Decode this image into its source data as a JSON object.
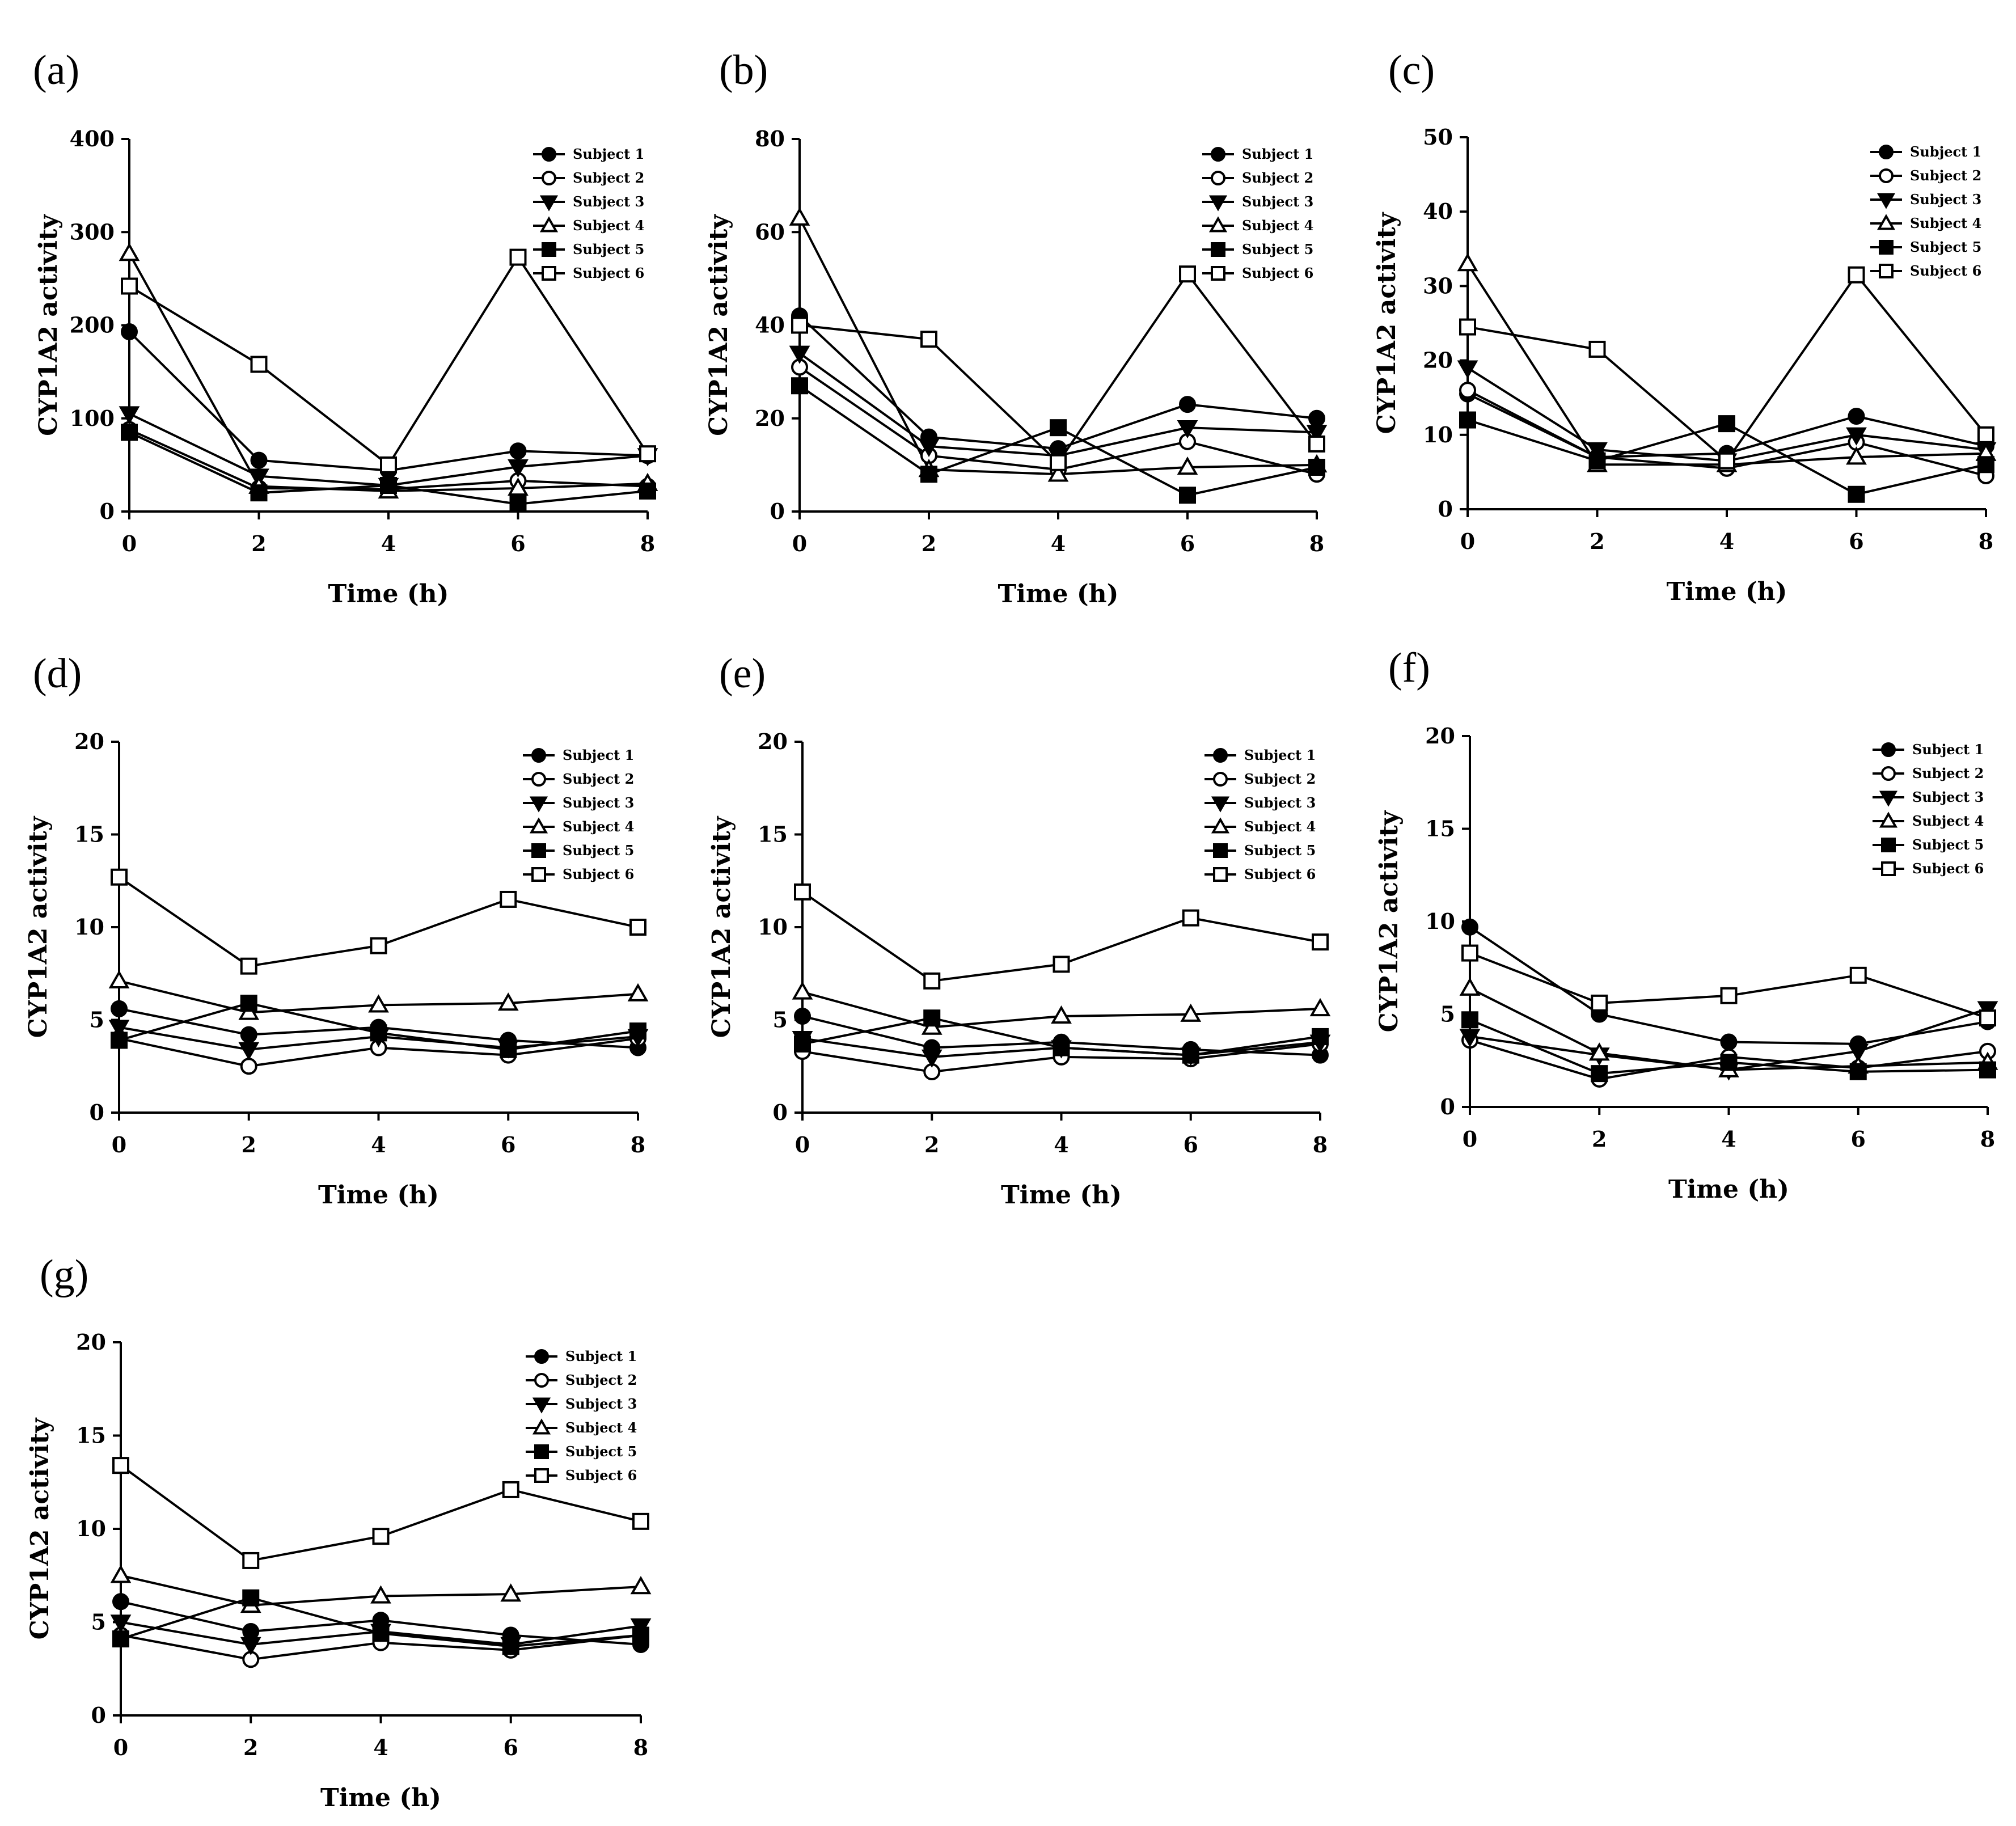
{
  "figure": {
    "ylabel": "CYP1A2 activity",
    "xlabel": "Time (h)"
  },
  "chart_data": [
    {
      "id": "a",
      "panel_label": "(a)",
      "type": "line",
      "x": [
        0,
        2,
        4,
        6,
        8
      ],
      "xticks": [
        "0",
        "2",
        "4",
        "6",
        "8"
      ],
      "xlim": [
        0,
        8
      ],
      "ylim": [
        0,
        400
      ],
      "yticks": [
        "0",
        "100",
        "200",
        "300",
        "400"
      ],
      "xlabel": "Time (h)",
      "ylabel": "CYP1A2 activity",
      "series": [
        {
          "name": "Subject 1",
          "marker": "circle-filled",
          "values": [
            193,
            55,
            44,
            65,
            60
          ]
        },
        {
          "name": "Subject 2",
          "marker": "circle-open",
          "values": [
            88,
            25,
            24,
            33,
            27
          ]
        },
        {
          "name": "Subject 3",
          "marker": "triangle-down-filled",
          "values": [
            105,
            38,
            28,
            48,
            60
          ]
        },
        {
          "name": "Subject 4",
          "marker": "triangle-up-open",
          "values": [
            277,
            27,
            22,
            25,
            30
          ]
        },
        {
          "name": "Subject 5",
          "marker": "square-filled",
          "values": [
            85,
            20,
            28,
            8,
            22
          ]
        },
        {
          "name": "Subject 6",
          "marker": "square-open",
          "values": [
            242,
            158,
            50,
            273,
            62
          ]
        }
      ]
    },
    {
      "id": "b",
      "panel_label": "(b)",
      "type": "line",
      "x": [
        0,
        2,
        4,
        6,
        8
      ],
      "xticks": [
        "0",
        "2",
        "4",
        "6",
        "8"
      ],
      "xlim": [
        0,
        8
      ],
      "ylim": [
        0,
        80
      ],
      "yticks": [
        "0",
        "20",
        "40",
        "60",
        "80"
      ],
      "xlabel": "Time (h)",
      "ylabel": "CYP1A2 activity",
      "series": [
        {
          "name": "Subject 1",
          "marker": "circle-filled",
          "values": [
            42,
            16,
            13.5,
            23,
            20
          ]
        },
        {
          "name": "Subject 2",
          "marker": "circle-open",
          "values": [
            31,
            12,
            9,
            15,
            8
          ]
        },
        {
          "name": "Subject 3",
          "marker": "triangle-down-filled",
          "values": [
            34,
            14,
            12,
            18,
            17
          ]
        },
        {
          "name": "Subject 4",
          "marker": "triangle-up-open",
          "values": [
            63,
            9,
            8,
            9.5,
            10
          ]
        },
        {
          "name": "Subject 5",
          "marker": "square-filled",
          "values": [
            27,
            8,
            18,
            3.5,
            9.5
          ]
        },
        {
          "name": "Subject 6",
          "marker": "square-open",
          "values": [
            40,
            37,
            10.5,
            51,
            14.5
          ]
        }
      ]
    },
    {
      "id": "c",
      "panel_label": "(c)",
      "type": "line",
      "x": [
        0,
        2,
        4,
        6,
        8
      ],
      "xticks": [
        "0",
        "2",
        "4",
        "6",
        "8"
      ],
      "xlim": [
        0,
        8
      ],
      "ylim": [
        0,
        50
      ],
      "yticks": [
        "0",
        "10",
        "20",
        "30",
        "40",
        "50"
      ],
      "xlabel": "Time (h)",
      "ylabel": "CYP1A2 activity",
      "series": [
        {
          "name": "Subject 1",
          "marker": "circle-filled",
          "values": [
            15.5,
            7,
            7.5,
            12.5,
            8.5
          ]
        },
        {
          "name": "Subject 2",
          "marker": "circle-open",
          "values": [
            16,
            7,
            5.5,
            9,
            4.5
          ]
        },
        {
          "name": "Subject 3",
          "marker": "triangle-down-filled",
          "values": [
            19,
            8,
            6.5,
            10,
            8
          ]
        },
        {
          "name": "Subject 4",
          "marker": "triangle-up-open",
          "values": [
            33,
            6,
            6,
            7,
            7.5
          ]
        },
        {
          "name": "Subject 5",
          "marker": "square-filled",
          "values": [
            12,
            6.5,
            11.5,
            2,
            6
          ]
        },
        {
          "name": "Subject 6",
          "marker": "square-open",
          "values": [
            24.5,
            21.5,
            6.5,
            31.5,
            10
          ]
        }
      ]
    },
    {
      "id": "d",
      "panel_label": "(d)",
      "type": "line",
      "x": [
        0,
        2,
        4,
        6,
        8
      ],
      "xticks": [
        "0",
        "2",
        "4",
        "6",
        "8"
      ],
      "xlim": [
        0,
        8
      ],
      "ylim": [
        0,
        20
      ],
      "yticks": [
        "0",
        "5",
        "10",
        "15",
        "20"
      ],
      "xlabel": "Time (h)",
      "ylabel": "CYP1A2 activity",
      "series": [
        {
          "name": "Subject 1",
          "marker": "circle-filled",
          "values": [
            5.6,
            4.2,
            4.6,
            3.9,
            3.5
          ]
        },
        {
          "name": "Subject 2",
          "marker": "circle-open",
          "values": [
            4.0,
            2.5,
            3.5,
            3.1,
            4.0
          ]
        },
        {
          "name": "Subject 3",
          "marker": "triangle-down-filled",
          "values": [
            4.6,
            3.4,
            4.1,
            3.5,
            4.1
          ]
        },
        {
          "name": "Subject 4",
          "marker": "triangle-up-open",
          "values": [
            7.1,
            5.4,
            5.8,
            5.9,
            6.4
          ]
        },
        {
          "name": "Subject 5",
          "marker": "square-filled",
          "values": [
            3.9,
            5.9,
            4.3,
            3.4,
            4.4
          ]
        },
        {
          "name": "Subject 6",
          "marker": "square-open",
          "values": [
            12.7,
            7.9,
            9.0,
            11.5,
            10.0
          ]
        }
      ]
    },
    {
      "id": "e",
      "panel_label": "(e)",
      "type": "line",
      "x": [
        0,
        2,
        4,
        6,
        8
      ],
      "xticks": [
        "0",
        "2",
        "4",
        "6",
        "8"
      ],
      "xlim": [
        0,
        8
      ],
      "ylim": [
        0,
        20
      ],
      "yticks": [
        "0",
        "5",
        "10",
        "15",
        "20"
      ],
      "xlabel": "Time (h)",
      "ylabel": "CYP1A2 activity",
      "series": [
        {
          "name": "Subject 1",
          "marker": "circle-filled",
          "values": [
            5.2,
            3.5,
            3.8,
            3.4,
            3.1
          ]
        },
        {
          "name": "Subject 2",
          "marker": "circle-open",
          "values": [
            3.3,
            2.2,
            3.0,
            2.9,
            3.7
          ]
        },
        {
          "name": "Subject 3",
          "marker": "triangle-down-filled",
          "values": [
            4.0,
            3.0,
            3.5,
            3.1,
            3.8
          ]
        },
        {
          "name": "Subject 4",
          "marker": "triangle-up-open",
          "values": [
            6.5,
            4.6,
            5.2,
            5.3,
            5.6
          ]
        },
        {
          "name": "Subject 5",
          "marker": "square-filled",
          "values": [
            3.7,
            5.1,
            3.5,
            3.1,
            4.1
          ]
        },
        {
          "name": "Subject 6",
          "marker": "square-open",
          "values": [
            11.9,
            7.1,
            8.0,
            10.5,
            9.2
          ]
        }
      ]
    },
    {
      "id": "f",
      "panel_label": "(f)",
      "type": "line",
      "x": [
        0,
        2,
        4,
        6,
        8
      ],
      "xticks": [
        "0",
        "2",
        "4",
        "6",
        "8"
      ],
      "xlim": [
        0,
        8
      ],
      "ylim": [
        0,
        20
      ],
      "yticks": [
        "0",
        "5",
        "10",
        "15",
        "20"
      ],
      "xlabel": "Time (h)",
      "ylabel": "CYP1A2 activity",
      "series": [
        {
          "name": "Subject 1",
          "marker": "circle-filled",
          "values": [
            9.7,
            5.0,
            3.5,
            3.4,
            4.6
          ]
        },
        {
          "name": "Subject 2",
          "marker": "circle-open",
          "values": [
            3.6,
            1.5,
            2.7,
            2.1,
            3.0
          ]
        },
        {
          "name": "Subject 3",
          "marker": "triangle-down-filled",
          "values": [
            3.8,
            2.8,
            2.0,
            3.0,
            5.3
          ]
        },
        {
          "name": "Subject 4",
          "marker": "triangle-up-open",
          "values": [
            6.4,
            2.9,
            2.0,
            2.2,
            2.4
          ]
        },
        {
          "name": "Subject 5",
          "marker": "square-filled",
          "values": [
            4.7,
            1.8,
            2.4,
            1.9,
            2.0
          ]
        },
        {
          "name": "Subject 6",
          "marker": "square-open",
          "values": [
            8.3,
            5.6,
            6.0,
            7.1,
            4.8
          ]
        }
      ]
    },
    {
      "id": "g",
      "panel_label": "(g)",
      "type": "line",
      "x": [
        0,
        2,
        4,
        6,
        8
      ],
      "xticks": [
        "0",
        "2",
        "4",
        "6",
        "8"
      ],
      "xlim": [
        0,
        8
      ],
      "ylim": [
        0,
        20
      ],
      "yticks": [
        "0",
        "5",
        "10",
        "15",
        "20"
      ],
      "xlabel": "Time (h)",
      "ylabel": "CYP1A2 activity",
      "series": [
        {
          "name": "Subject 1",
          "marker": "circle-filled",
          "values": [
            6.1,
            4.5,
            5.1,
            4.3,
            3.8
          ]
        },
        {
          "name": "Subject 2",
          "marker": "circle-open",
          "values": [
            4.3,
            3.0,
            3.9,
            3.5,
            4.3
          ]
        },
        {
          "name": "Subject 3",
          "marker": "triangle-down-filled",
          "values": [
            5.0,
            3.8,
            4.5,
            3.8,
            4.8
          ]
        },
        {
          "name": "Subject 4",
          "marker": "triangle-up-open",
          "values": [
            7.5,
            5.9,
            6.4,
            6.5,
            6.9
          ]
        },
        {
          "name": "Subject 5",
          "marker": "square-filled",
          "values": [
            4.1,
            6.3,
            4.4,
            3.7,
            4.3
          ]
        },
        {
          "name": "Subject 6",
          "marker": "square-open",
          "values": [
            13.4,
            8.3,
            9.6,
            12.1,
            10.4
          ]
        }
      ]
    }
  ]
}
